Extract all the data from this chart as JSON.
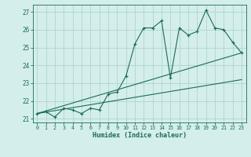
{
  "title": "",
  "xlabel": "Humidex (Indice chaleur)",
  "ylabel": "",
  "background_color": "#d4eeeb",
  "grid_color": "#aed4cf",
  "line_color": "#1a6b5a",
  "xlim": [
    -0.5,
    23.5
  ],
  "ylim": [
    20.8,
    27.4
  ],
  "xticks": [
    0,
    1,
    2,
    3,
    4,
    5,
    6,
    7,
    8,
    9,
    10,
    11,
    12,
    13,
    14,
    15,
    16,
    17,
    18,
    19,
    20,
    21,
    22,
    23
  ],
  "yticks": [
    21,
    22,
    23,
    24,
    25,
    26,
    27
  ],
  "line1_x": [
    0,
    1,
    2,
    3,
    4,
    5,
    6,
    7,
    8,
    9,
    10,
    11,
    12,
    13,
    14,
    15,
    16,
    17,
    18,
    19,
    20,
    21,
    22,
    23
  ],
  "line1_y": [
    21.3,
    21.4,
    21.1,
    21.6,
    21.5,
    21.3,
    21.6,
    21.5,
    22.4,
    22.5,
    23.4,
    25.2,
    26.1,
    26.1,
    26.5,
    23.3,
    26.1,
    25.7,
    25.9,
    27.1,
    26.1,
    26.0,
    25.3,
    24.7
  ],
  "line2_x": [
    0,
    23
  ],
  "line2_y": [
    21.3,
    24.7
  ],
  "line3_x": [
    0,
    23
  ],
  "line3_y": [
    21.3,
    23.2
  ]
}
